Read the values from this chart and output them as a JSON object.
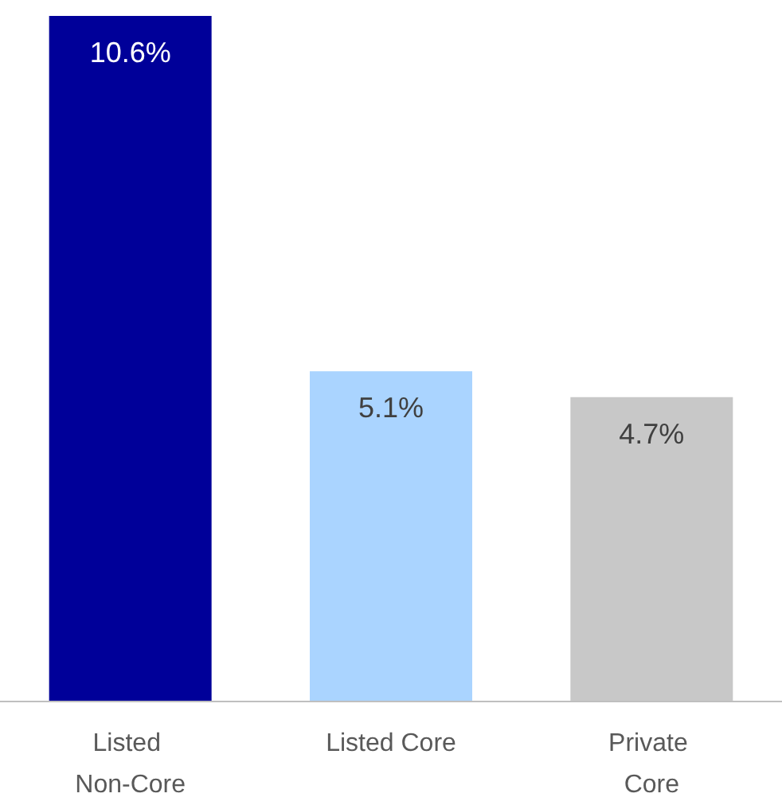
{
  "chart_data": {
    "type": "bar",
    "categories": [
      "Listed Non-Core",
      "Listed Core",
      "Private Core"
    ],
    "values": [
      10.6,
      5.1,
      4.7
    ],
    "colors": [
      "#000099",
      "#aad4ff",
      "#c8c8c8"
    ],
    "value_labels": [
      "10.6%",
      "5.1%",
      "4.7%"
    ]
  }
}
